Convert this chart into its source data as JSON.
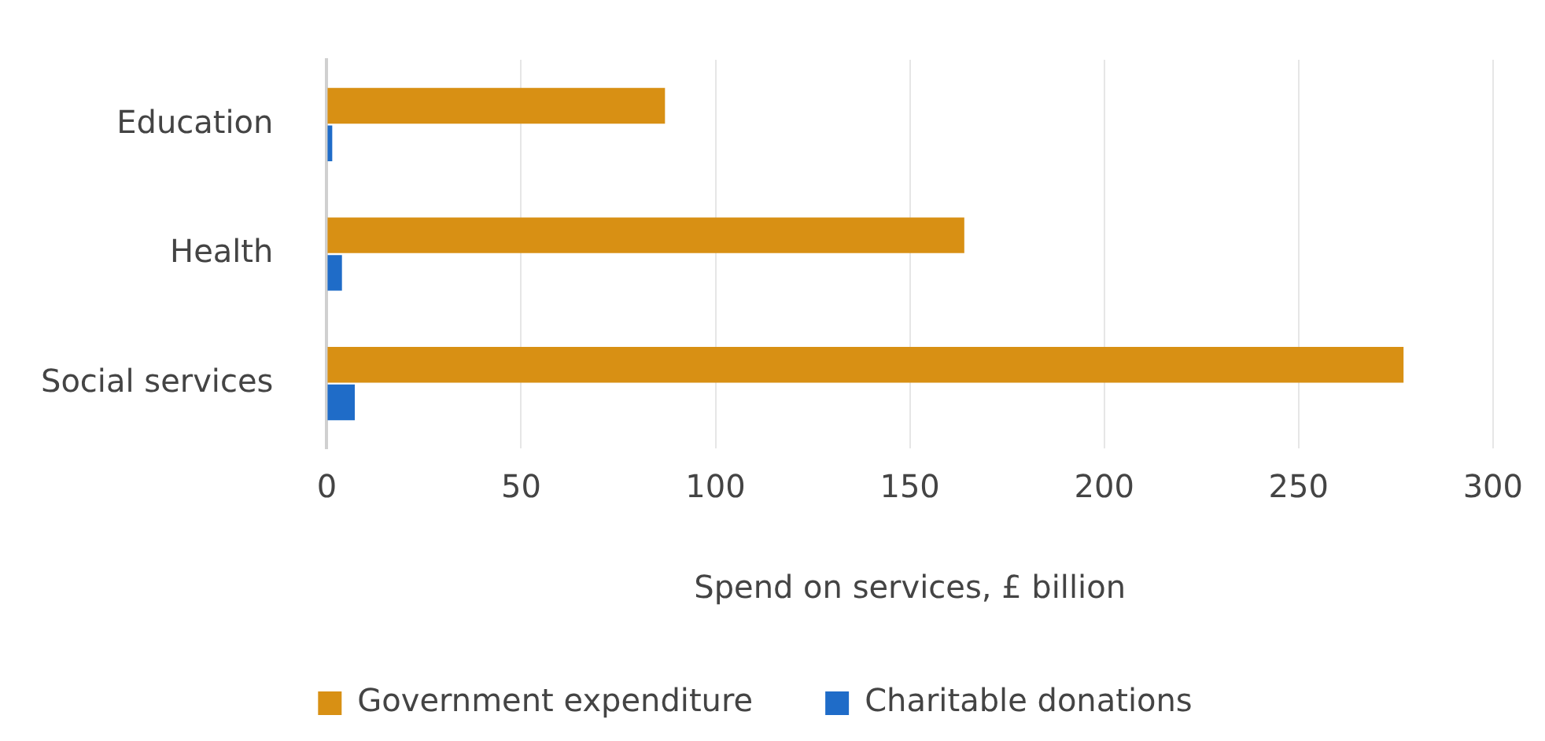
{
  "chart_data": {
    "type": "bar",
    "orientation": "horizontal",
    "categories": [
      "Education",
      "Health",
      "Social services"
    ],
    "series": [
      {
        "name": "Government expenditure",
        "color": "#d89014",
        "values": [
          87,
          164,
          277
        ]
      },
      {
        "name": "Charitable donations",
        "color": "#1f6cc8",
        "values": [
          1.4,
          3.9,
          7.2
        ]
      }
    ],
    "xlabel": "Spend on services, £ billion",
    "xlim": [
      0,
      300
    ],
    "xticks": [
      0,
      50,
      100,
      150,
      200,
      250,
      300
    ],
    "grid": "x",
    "legend": "bottom"
  }
}
